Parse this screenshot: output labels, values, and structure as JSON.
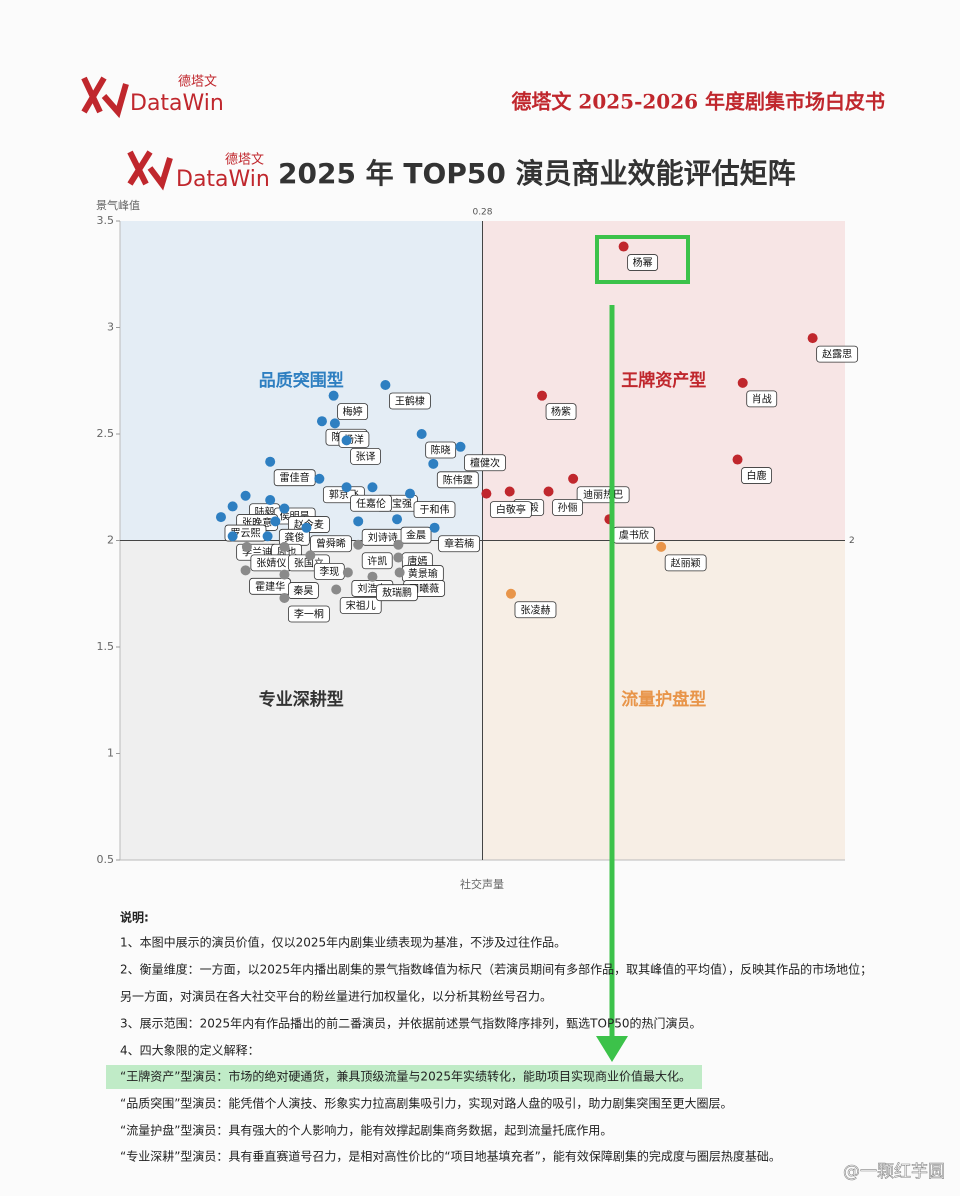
{
  "header": {
    "logo_cn": "德塔文",
    "logo_en": "DataWin",
    "report_title": "德塔文 2025-2026 年度剧集市场白皮书"
  },
  "chart_data": {
    "type": "scatter",
    "title": "2025 年 TOP50 演员商业效能评估矩阵",
    "y_label": "景气峰值",
    "x_label": "社交声量",
    "xlim": [
      0,
      0.56
    ],
    "ylim": [
      0.5,
      3.5
    ],
    "yticks": [
      0.5,
      1,
      1.5,
      2,
      2.5,
      3,
      3.5
    ],
    "xref": 0.28,
    "yref": 2,
    "series": [
      {
        "name": "王牌资产型",
        "color": "#c0272d",
        "labels": [
          "杨幂",
          "赵露思",
          "肖战",
          "杨紫",
          "白鹿",
          "成毅",
          "迪丽热巴",
          "孙俪",
          "白敬亭",
          "虞书欣"
        ],
        "x": [
          0.389,
          0.535,
          0.481,
          0.326,
          0.477,
          0.301,
          0.35,
          0.331,
          0.283,
          0.378
        ],
        "values": [
          3.38,
          2.95,
          2.74,
          2.68,
          2.38,
          2.23,
          2.29,
          2.23,
          2.22,
          2.1
        ]
      },
      {
        "name": "品质突围型",
        "color": "#2e7fc1",
        "labels": [
          "梅婷",
          "王鹤棣",
          "陈都灵",
          "杨洋",
          "陈晓",
          "张译",
          "檀健次",
          "雷佳音",
          "郭京飞",
          "王宝强",
          "陈伟霆",
          "任嘉伦",
          "于和伟",
          "陆毅",
          "侯明昊",
          "张晚意",
          "罗云熙",
          "赵今麦",
          "刘诗诗",
          "金晨",
          "章若楠",
          "龚俊",
          "曾舜晞",
          "李兰迪",
          "周也"
        ],
        "x": [
          0.165,
          0.205,
          0.156,
          0.166,
          0.233,
          0.175,
          0.263,
          0.116,
          0.154,
          0.195,
          0.242,
          0.175,
          0.224,
          0.097,
          0.116,
          0.087,
          0.078,
          0.127,
          0.184,
          0.214,
          0.243,
          0.12,
          0.144,
          0.087,
          0.114
        ],
        "values": [
          2.68,
          2.73,
          2.56,
          2.55,
          2.5,
          2.47,
          2.44,
          2.37,
          2.29,
          2.25,
          2.36,
          2.25,
          2.22,
          2.21,
          2.19,
          2.16,
          2.11,
          2.15,
          2.09,
          2.1,
          2.06,
          2.09,
          2.06,
          2.02,
          2.02
        ]
      },
      {
        "name": "流量护盘型",
        "color": "#e8954a",
        "labels": [
          "赵丽颖",
          "张凌赫"
        ],
        "x": [
          0.418,
          0.302
        ],
        "values": [
          1.97,
          1.75
        ]
      },
      {
        "name": "专业深耕型",
        "color": "#8a8a8a",
        "labels": [
          "张婧仪",
          "许凯",
          "唐嫣",
          "张国立",
          "霍建华",
          "李现",
          "黄景瑜",
          "刘浩存",
          "田曦薇",
          "秦昊",
          "宋祖儿",
          "敖瑞鹏",
          "李一桐"
        ],
        "x": [
          0.098,
          0.184,
          0.215,
          0.127,
          0.097,
          0.147,
          0.215,
          0.176,
          0.216,
          0.127,
          0.167,
          0.195,
          0.127
        ],
        "values": [
          1.97,
          1.98,
          1.98,
          1.97,
          1.86,
          1.93,
          1.92,
          1.85,
          1.85,
          1.84,
          1.77,
          1.83,
          1.73
        ]
      }
    ]
  },
  "notes": {
    "heading": "说明:",
    "lines": [
      "1、本图中展示的演员价值，仅以2025年内剧集业绩表现为基准，不涉及过往作品。",
      "2、衡量维度：一方面，以2025年内播出剧集的景气指数峰值为标尺（若演员期间有多部作品，取其峰值的平均值），反映其作品的市场地位；",
      "另一方面，对演员在各大社交平台的粉丝量进行加权量化，以分析其粉丝号召力。",
      "3、展示范围：2025年内有作品播出的前二番演员，并依据前述景气指数降序排列，甄选TOP50的热门演员。",
      "4、四大象限的定义解释：",
      "“王牌资产”型演员：市场的绝对硬通货，兼具顶级流量与2025年实绩转化，能助项目实现商业价值最大化。",
      "“品质突围”型演员：能凭借个人演技、形象实力拉高剧集吸引力，实现对路人盘的吸引，助力剧集突围至更大圈层。",
      "“流量护盘”型演员：具有强大的个人影响力，能有效撑起剧集商务数据，起到流量托底作用。",
      "“专业深耕”型演员：具有垂直赛道号召力，是相对高性价比的“项目地基填充者”，能有效保障剧集的完成度与圈层热度基础。"
    ]
  },
  "watermark": "@一颗红芋圆"
}
